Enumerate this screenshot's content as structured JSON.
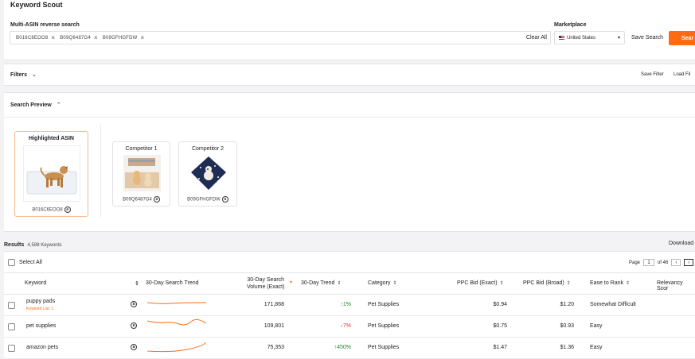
{
  "app": {
    "title": "Keyword Scout"
  },
  "search": {
    "label": "Multi-ASIN reverse search",
    "chips": [
      "B016C6EOO8",
      "B09Q6487G4",
      "B09GFHGFDW"
    ],
    "clear_all": "Clear All",
    "marketplace_label": "Marketplace",
    "marketplace_value": "United States",
    "save_search": "Save Search",
    "search_button": "Sear"
  },
  "filters": {
    "label": "Filters",
    "save_filter": "Save Filter",
    "load_filter": "Load Fil"
  },
  "preview": {
    "label": "Search Preview",
    "highlighted": {
      "title": "Highlighted ASIN",
      "asin": "B016C6EOO8"
    },
    "competitors": [
      {
        "title": "Competitor 1",
        "asin": "B09Q6487G4"
      },
      {
        "title": "Competitor 2",
        "asin": "B09GFHGFDW"
      }
    ]
  },
  "results": {
    "label": "Results",
    "count": "4,588 Keywords",
    "download": "Download",
    "select_all": "Select All",
    "pager": {
      "page_label": "Page",
      "page": "1",
      "of": "of 46",
      "prev": "‹",
      "next": "›"
    },
    "columns": {
      "keyword": "Keyword",
      "trend_chart": "30-Day Search Trend",
      "volume_line1": "30-Day Search",
      "volume_line2": "Volume (Exact)",
      "trend": "30-Day Trend",
      "category": "Category",
      "ppc_exact": "PPC Bid (Exact)",
      "ppc_broad": "PPC Bid (Broad)",
      "ease": "Ease to Rank",
      "relevancy": "Relevancy Scor"
    },
    "rows": [
      {
        "keyword": "puppy pads",
        "sub": "Keyword List: 1",
        "volume": "171,868",
        "trend": "↑1%",
        "trend_dir": "up",
        "category": "Pet Supplies",
        "ppc_exact": "$0.94",
        "ppc_broad": "$1.20",
        "ease": "Somewhat Difficult"
      },
      {
        "keyword": "pet supplies",
        "sub": "",
        "volume": "109,801",
        "trend": "↓7%",
        "trend_dir": "down",
        "category": "Pet Supplies",
        "ppc_exact": "$0.75",
        "ppc_broad": "$0.93",
        "ease": "Easy"
      },
      {
        "keyword": "amazon pets",
        "sub": "",
        "volume": "75,353",
        "trend": "↑450%",
        "trend_dir": "up",
        "category": "Pet Supplies",
        "ppc_exact": "$1.47",
        "ppc_broad": "$1.36",
        "ease": "Easy"
      }
    ]
  },
  "colors": {
    "accent": "#ff6a13",
    "up": "#1a8a3a",
    "down": "#dd3333"
  }
}
